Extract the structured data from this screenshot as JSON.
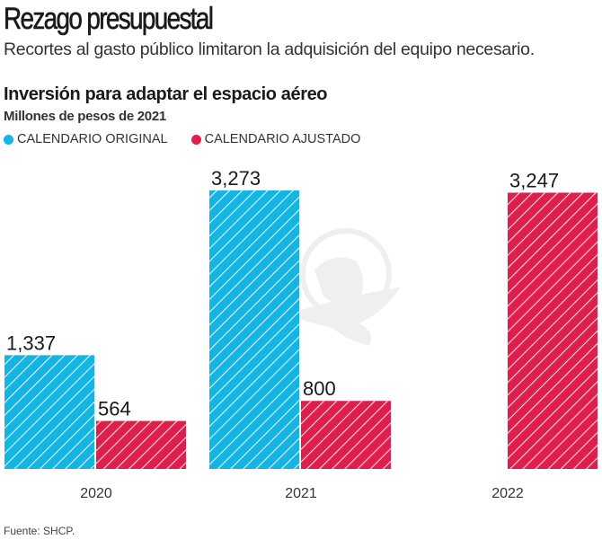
{
  "header": {
    "title": "Rezago presupuestal",
    "subtitle": "Recortes al gasto público limitaron la adquisición del equipo necesario."
  },
  "colors": {
    "original": "#14b4e3",
    "ajustado": "#e01e4b"
  },
  "source": "Fuente: SHCP.",
  "watermark": "globe-eagle-logo",
  "chart_data": {
    "type": "bar",
    "title": "Inversión para adaptar el espacio aéreo",
    "subtitle": "Millones de pesos de 2021",
    "xlabel": "",
    "ylabel": "Millones de pesos de 2021",
    "ylim": [
      0,
      3273
    ],
    "grid": false,
    "legend_position": "top-left",
    "categories": [
      "2020",
      "2021",
      "2022"
    ],
    "series": [
      {
        "name": "CALENDARIO ORIGINAL",
        "color": "#14b4e3",
        "values": [
          1337,
          3273,
          null
        ],
        "labels": [
          "1,337",
          "3,273",
          ""
        ]
      },
      {
        "name": "CALENDARIO AJUSTADO",
        "color": "#e01e4b",
        "values": [
          564,
          800,
          3247
        ],
        "labels": [
          "564",
          "800",
          "3,247"
        ]
      }
    ]
  }
}
